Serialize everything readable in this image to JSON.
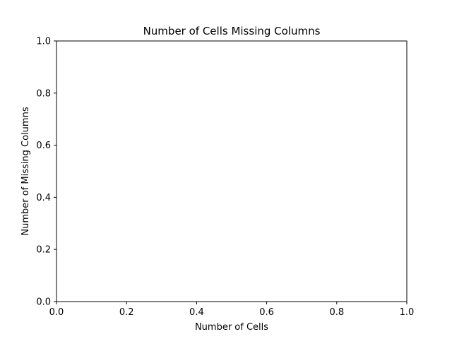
{
  "chart_data": {
    "type": "scatter",
    "title": "Number of Cells Missing Columns",
    "xlabel": "Number of Cells",
    "ylabel": "Number of Missing Columns",
    "xlim": [
      0.0,
      1.0
    ],
    "ylim": [
      0.0,
      1.0
    ],
    "x_ticks": [
      0.0,
      0.2,
      0.4,
      0.6,
      0.8,
      1.0
    ],
    "y_ticks": [
      0.0,
      0.2,
      0.4,
      0.6,
      0.8,
      1.0
    ],
    "x_tick_labels": [
      "0.0",
      "0.2",
      "0.4",
      "0.6",
      "0.8",
      "1.0"
    ],
    "y_tick_labels": [
      "0.0",
      "0.2",
      "0.4",
      "0.6",
      "0.8",
      "1.0"
    ],
    "series": [],
    "grid": false,
    "colors": {
      "axes": "#000000",
      "background": "#ffffff"
    }
  }
}
